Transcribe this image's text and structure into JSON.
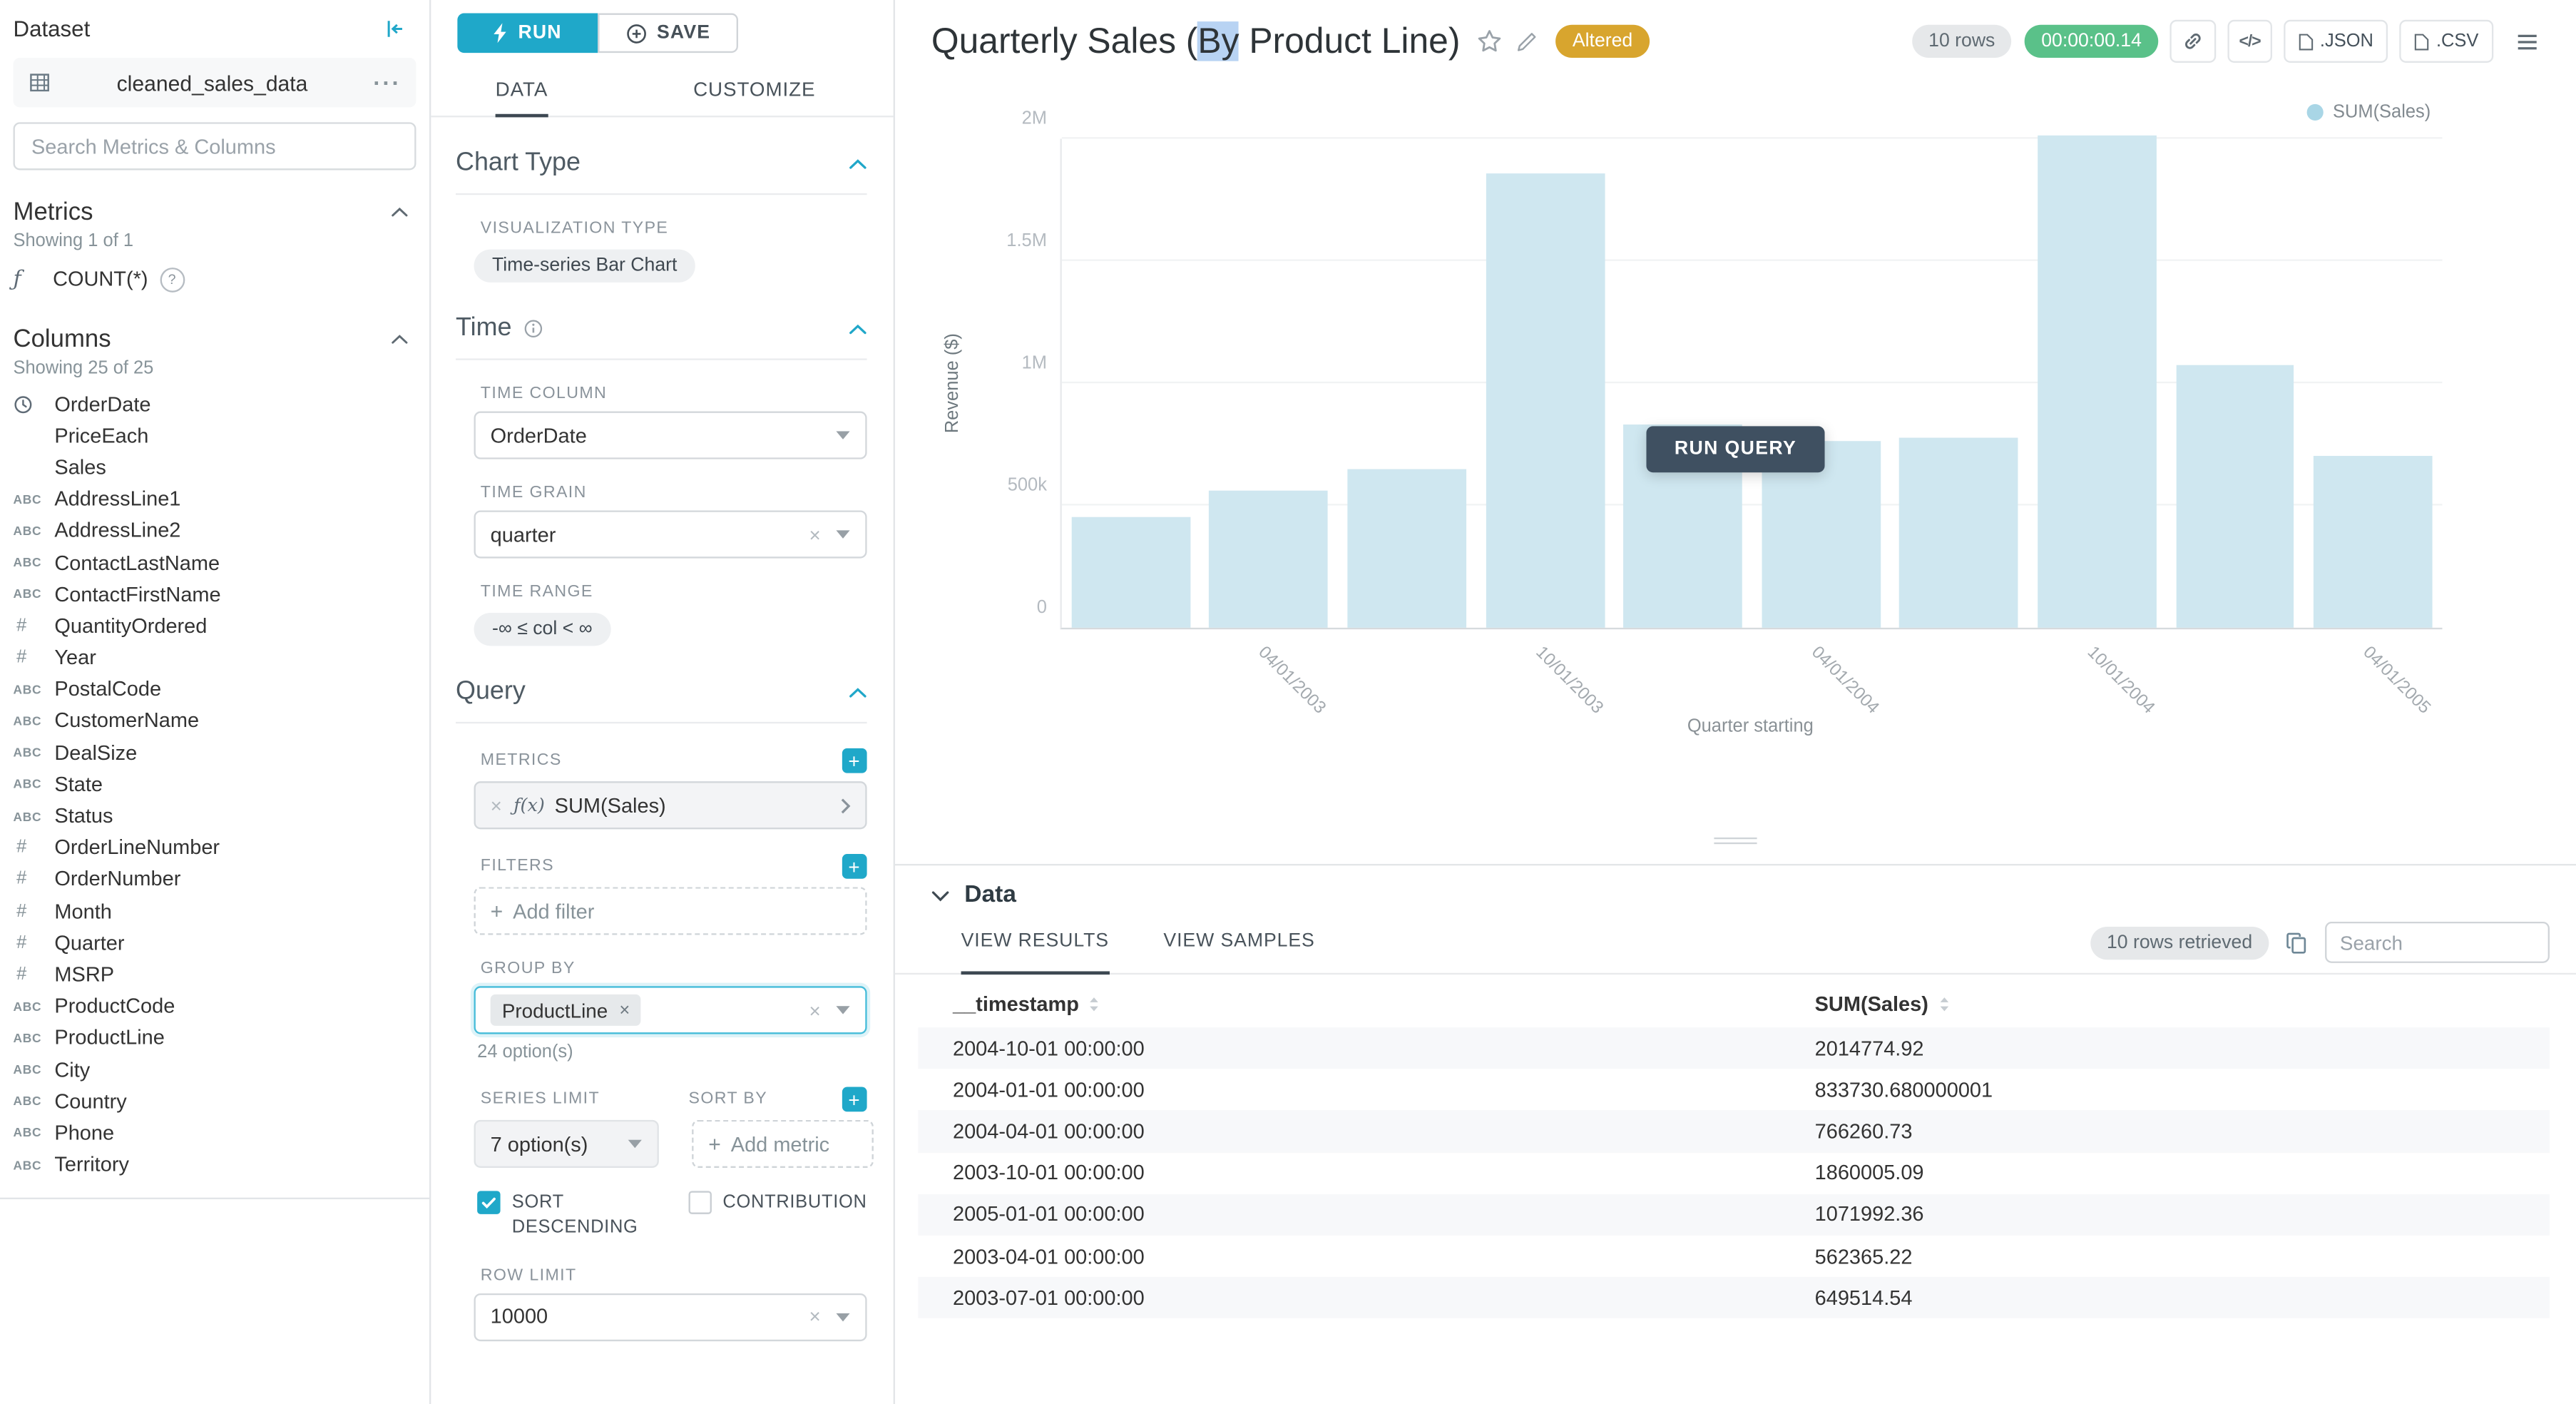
{
  "colors": {
    "accent": "#20a7c9",
    "success": "#5ac189",
    "altered": "#d8a52e",
    "bar": "#cfe7f0",
    "selection": "#b8d3f3",
    "run_query": "#3f5061"
  },
  "dataset_panel": {
    "title": "Dataset",
    "dataset_name": "cleaned_sales_data",
    "search_placeholder": "Search Metrics & Columns",
    "metrics_section": {
      "title": "Metrics",
      "showing": "Showing 1 of 1",
      "metric": "COUNT(*)"
    },
    "columns_section": {
      "title": "Columns",
      "showing": "Showing 25 of 25",
      "items": [
        {
          "type": "temporal",
          "label": "OrderDate"
        },
        {
          "type": "plain",
          "label": "PriceEach"
        },
        {
          "type": "plain",
          "label": "Sales"
        },
        {
          "type": "text",
          "label": "AddressLine1"
        },
        {
          "type": "text",
          "label": "AddressLine2"
        },
        {
          "type": "text",
          "label": "ContactLastName"
        },
        {
          "type": "text",
          "label": "ContactFirstName"
        },
        {
          "type": "num",
          "label": "QuantityOrdered"
        },
        {
          "type": "num",
          "label": "Year"
        },
        {
          "type": "text",
          "label": "PostalCode"
        },
        {
          "type": "text",
          "label": "CustomerName"
        },
        {
          "type": "text",
          "label": "DealSize"
        },
        {
          "type": "text",
          "label": "State"
        },
        {
          "type": "text",
          "label": "Status"
        },
        {
          "type": "num",
          "label": "OrderLineNumber"
        },
        {
          "type": "num",
          "label": "OrderNumber"
        },
        {
          "type": "num",
          "label": "Month"
        },
        {
          "type": "num",
          "label": "Quarter"
        },
        {
          "type": "num",
          "label": "MSRP"
        },
        {
          "type": "text",
          "label": "ProductCode"
        },
        {
          "type": "text",
          "label": "ProductLine"
        },
        {
          "type": "text",
          "label": "City"
        },
        {
          "type": "text",
          "label": "Country"
        },
        {
          "type": "text",
          "label": "Phone"
        },
        {
          "type": "text",
          "label": "Territory"
        }
      ]
    }
  },
  "control_panel": {
    "run_label": "RUN",
    "save_label": "SAVE",
    "tabs": {
      "data": "DATA",
      "customize": "CUSTOMIZE"
    },
    "chart_type": {
      "title": "Chart Type",
      "viz_label": "VISUALIZATION TYPE",
      "viz_value": "Time-series Bar Chart"
    },
    "time": {
      "title": "Time",
      "column_label": "TIME COLUMN",
      "column_value": "OrderDate",
      "grain_label": "TIME GRAIN",
      "grain_value": "quarter",
      "range_label": "TIME RANGE",
      "range_value": "-∞ ≤ col < ∞"
    },
    "query": {
      "title": "Query",
      "metrics_label": "METRICS",
      "metric_value": "SUM(Sales)",
      "metric_fx": "ƒ(x)",
      "filters_label": "FILTERS",
      "add_filter": "Add filter",
      "group_by_label": "GROUP BY",
      "group_by_value": "ProductLine",
      "group_by_hint": "24 option(s)",
      "series_limit_label": "SERIES LIMIT",
      "series_limit_value": "7 option(s)",
      "sort_by_label": "SORT BY",
      "sort_by_placeholder": "Add metric",
      "sort_descending_label": "SORT DESCENDING",
      "contribution_label": "CONTRIBUTION",
      "row_limit_label": "ROW LIMIT",
      "row_limit_value": "10000"
    }
  },
  "header": {
    "title_prefix": "Quarterly Sales (",
    "title_highlight": "By",
    "title_suffix": " Product Line)",
    "altered_badge": "Altered",
    "rows_badge": "10 rows",
    "timer_badge": "00:00:00.14",
    "json_button": ".JSON",
    "csv_button": ".CSV"
  },
  "chart_overlay": {
    "run_query_label": "RUN QUERY"
  },
  "chart_data": {
    "type": "bar",
    "title": "Quarterly Sales (By Product Line)",
    "x": [
      "2003-01-01",
      "2003-04-01",
      "2003-07-01",
      "2003-10-01",
      "2004-01-01",
      "2004-04-01",
      "2004-07-01",
      "2004-10-01",
      "2005-01-01",
      "2005-04-01"
    ],
    "series": [
      {
        "name": "SUM(Sales)",
        "values": [
          452000,
          562365.22,
          649514.54,
          1860005.09,
          833730.68,
          766260.73,
          780000,
          2014774.92,
          1071992.36,
          700000
        ]
      }
    ],
    "ylim": [
      0,
      2000000
    ],
    "ytick_labels": [
      "0",
      "500k",
      "1M",
      "1.5M",
      "2M"
    ],
    "xtick_labels": [
      "04/01/2003",
      "10/01/2003",
      "04/01/2004",
      "10/01/2004",
      "04/01/2005"
    ],
    "xtick_slots": [
      1,
      3,
      5,
      7,
      9
    ],
    "xlabel": "Quarter starting",
    "ylabel": "Revenue ($)",
    "legend": [
      "SUM(Sales)"
    ],
    "legend_position": "top-right",
    "grid": true,
    "bar_color": "#cfe7f0"
  },
  "data_section": {
    "title": "Data",
    "tabs": {
      "results": "VIEW RESULTS",
      "samples": "VIEW SAMPLES"
    },
    "rows_retrieved": "10 rows retrieved",
    "search_placeholder": "Search",
    "columns": [
      "__timestamp",
      "SUM(Sales)"
    ],
    "rows": [
      [
        "2004-10-01 00:00:00",
        "2014774.92"
      ],
      [
        "2004-01-01 00:00:00",
        "833730.680000001"
      ],
      [
        "2004-04-01 00:00:00",
        "766260.73"
      ],
      [
        "2003-10-01 00:00:00",
        "1860005.09"
      ],
      [
        "2005-01-01 00:00:00",
        "1071992.36"
      ],
      [
        "2003-04-01 00:00:00",
        "562365.22"
      ],
      [
        "2003-07-01 00:00:00",
        "649514.54"
      ]
    ]
  }
}
